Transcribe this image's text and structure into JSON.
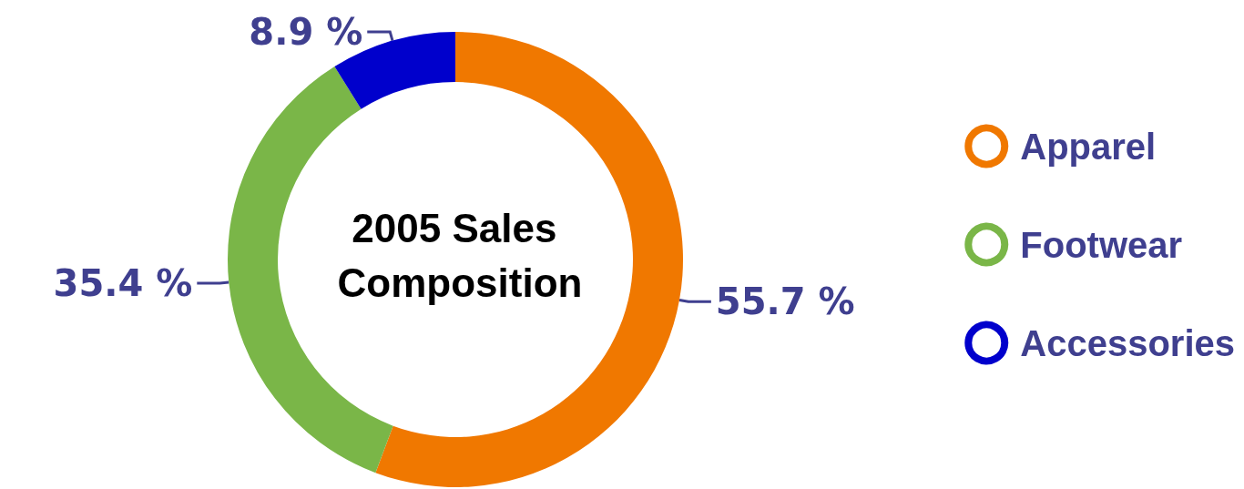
{
  "chart_data": {
    "type": "donut",
    "title": "2005 Sales Composition",
    "categories": [
      "Apparel",
      "Footwear",
      "Accessories"
    ],
    "values": [
      55.7,
      35.4,
      8.9
    ],
    "value_labels": [
      "55.7 %",
      "35.4 %",
      "8.9 %"
    ],
    "colors": [
      "#f07800",
      "#7ab648",
      "#0000cc"
    ],
    "legend": "right"
  }
}
